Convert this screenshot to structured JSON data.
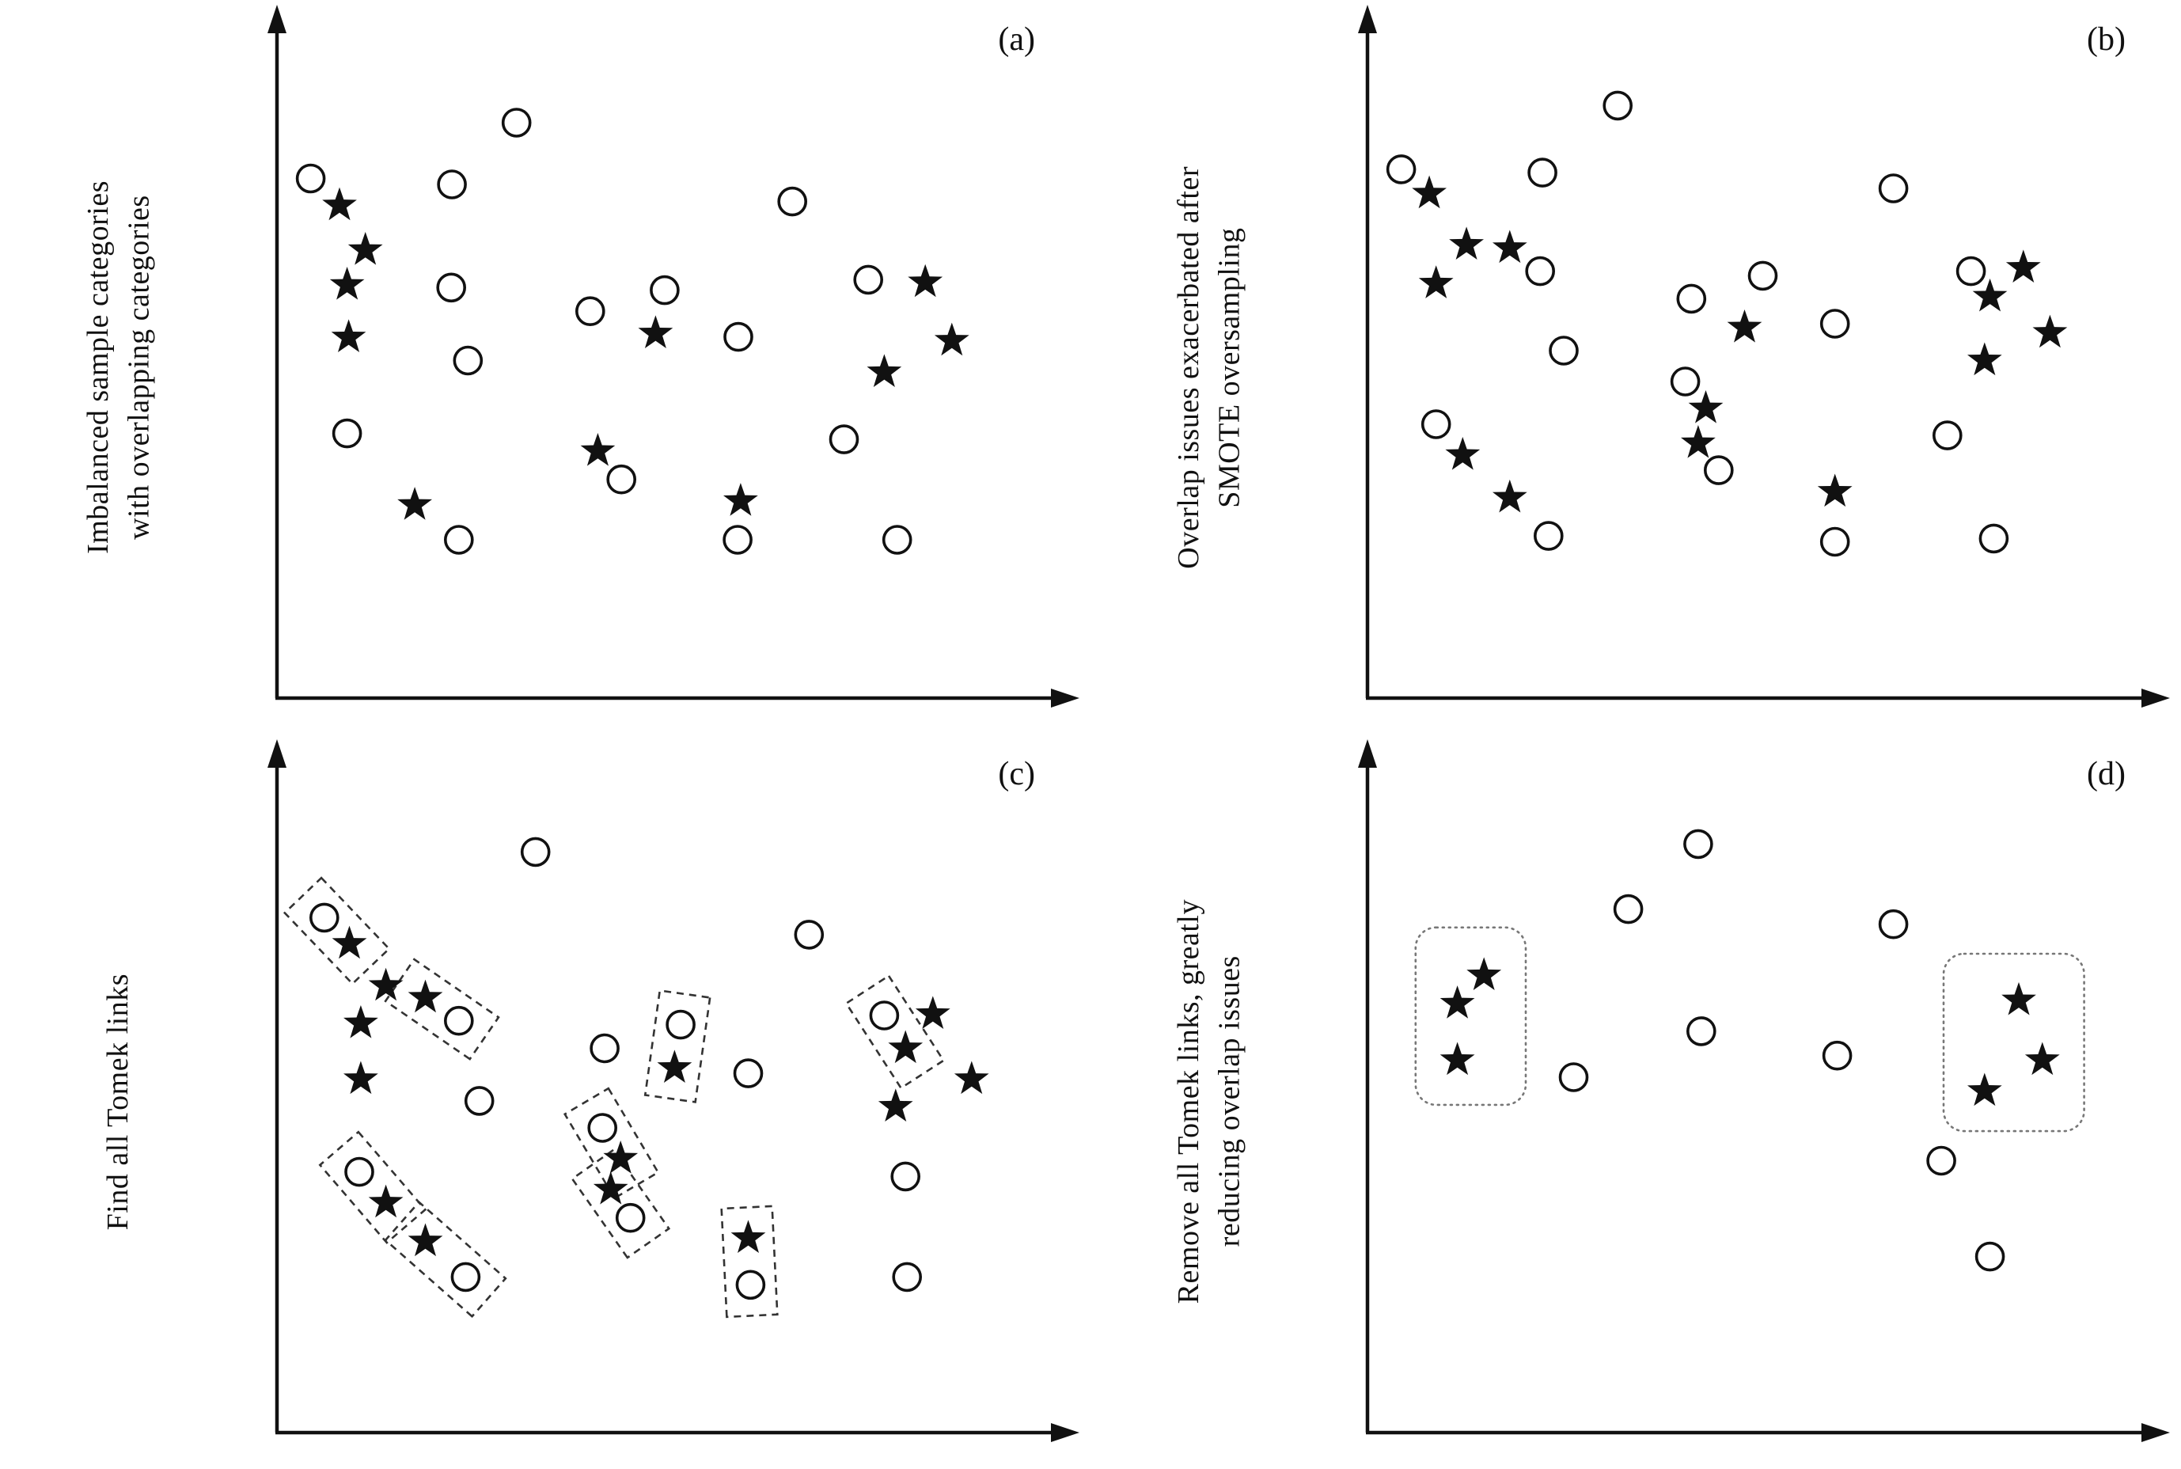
{
  "figure": {
    "background": "#ffffff",
    "axis_color": "#111111",
    "circle_fill": "#ffffff",
    "circle_stroke": "#111111",
    "star_fill": "#111111",
    "tomek_box_color": "#333333",
    "cluster_box_color": "#777777"
  },
  "chart_data": [
    {
      "type": "scatter",
      "panel": "(a)",
      "ylabel": "Imbalanced sample categories\nwith overlapping categories",
      "coords": "normalized 0-100, x rightward, y downward from top of plot area",
      "axes": {
        "ticks": "none",
        "style": "arrow axes, unlabeled"
      },
      "series": [
        {
          "name": "majority-circles",
          "marker": "circle",
          "points": [
            [
              3.6,
              23.8
            ],
            [
              22.2,
              24.7
            ],
            [
              30.7,
              15.3
            ],
            [
              22.1,
              40.4
            ],
            [
              24.3,
              51.5
            ],
            [
              8.4,
              62.6
            ],
            [
              23.1,
              78.8
            ],
            [
              40.4,
              44.0
            ],
            [
              50.2,
              40.8
            ],
            [
              44.5,
              69.6
            ],
            [
              59.9,
              47.9
            ],
            [
              59.8,
              78.8
            ],
            [
              67.0,
              27.3
            ],
            [
              77.0,
              39.2
            ],
            [
              73.8,
              63.5
            ],
            [
              80.8,
              78.8
            ]
          ]
        },
        {
          "name": "minority-stars",
          "marker": "star",
          "points": [
            [
              7.4,
              27.9
            ],
            [
              10.8,
              34.7
            ],
            [
              8.4,
              40.0
            ],
            [
              8.6,
              48.0
            ],
            [
              17.3,
              73.5
            ],
            [
              49.0,
              47.4
            ],
            [
              41.4,
              65.3
            ],
            [
              60.2,
              72.9
            ],
            [
              84.5,
              39.6
            ],
            [
              79.1,
              53.3
            ],
            [
              88.0,
              48.5
            ]
          ]
        }
      ]
    },
    {
      "type": "scatter",
      "panel": "(b)",
      "ylabel": "Overlap issues exacerbated after\nSMOTE oversampling",
      "coords": "normalized 0-100, x rightward, y downward from top of plot area",
      "axes": {
        "ticks": "none",
        "style": "arrow axes, unlabeled"
      },
      "series": [
        {
          "name": "majority-circles",
          "marker": "circle",
          "points": [
            [
              3.6,
              22.4
            ],
            [
              22.2,
              22.9
            ],
            [
              32.1,
              12.7
            ],
            [
              21.9,
              37.9
            ],
            [
              25.0,
              50.0
            ],
            [
              8.2,
              61.2
            ],
            [
              23.0,
              78.2
            ],
            [
              41.8,
              42.1
            ],
            [
              51.2,
              38.6
            ],
            [
              41.0,
              54.7
            ],
            [
              45.4,
              68.2
            ],
            [
              60.7,
              45.9
            ],
            [
              60.7,
              79.1
            ],
            [
              68.4,
              25.3
            ],
            [
              78.6,
              37.9
            ],
            [
              75.5,
              62.9
            ],
            [
              81.6,
              78.6
            ]
          ]
        },
        {
          "name": "minority-stars",
          "marker": "star",
          "points": [
            [
              7.3,
              26.1
            ],
            [
              12.2,
              33.9
            ],
            [
              8.2,
              39.8
            ],
            [
              17.9,
              34.4
            ],
            [
              11.7,
              65.9
            ],
            [
              17.9,
              72.4
            ],
            [
              48.8,
              46.5
            ],
            [
              43.7,
              58.8
            ],
            [
              42.7,
              64.1
            ],
            [
              60.7,
              71.5
            ],
            [
              81.1,
              41.8
            ],
            [
              85.5,
              37.4
            ],
            [
              80.4,
              51.5
            ],
            [
              89.0,
              47.3
            ]
          ]
        }
      ]
    },
    {
      "type": "scatter",
      "panel": "(c)",
      "ylabel": "Find all Tomek links",
      "coords": "normalized 0-100, x rightward, y downward from top of plot area",
      "axes": {
        "ticks": "none",
        "style": "arrow axes, unlabeled"
      },
      "series": [
        {
          "name": "majority-circles",
          "marker": "circle",
          "points": [
            [
              33.2,
              14.5
            ],
            [
              5.4,
              24.5
            ],
            [
              23.1,
              40.2
            ],
            [
              25.8,
              52.4
            ],
            [
              69.2,
              27.1
            ],
            [
              42.3,
              44.4
            ],
            [
              52.3,
              40.8
            ],
            [
              61.2,
              48.2
            ],
            [
              42.0,
              56.5
            ],
            [
              45.7,
              70.2
            ],
            [
              61.5,
              80.4
            ],
            [
              10.0,
              63.2
            ],
            [
              24.0,
              79.2
            ],
            [
              79.1,
              39.4
            ],
            [
              81.9,
              63.9
            ],
            [
              82.1,
              79.2
            ]
          ]
        },
        {
          "name": "minority-stars",
          "marker": "star",
          "points": [
            [
              8.7,
              28.5
            ],
            [
              13.5,
              34.9
            ],
            [
              18.7,
              36.7
            ],
            [
              10.2,
              40.6
            ],
            [
              10.2,
              49.1
            ],
            [
              51.5,
              47.4
            ],
            [
              44.4,
              61.2
            ],
            [
              43.1,
              65.9
            ],
            [
              61.2,
              73.3
            ],
            [
              13.5,
              67.9
            ],
            [
              18.7,
              73.8
            ],
            [
              81.9,
              44.4
            ],
            [
              85.5,
              39.2
            ],
            [
              80.6,
              53.3
            ],
            [
              90.6,
              49.1
            ]
          ]
        }
      ],
      "tomek_links": [
        {
          "circle": 1,
          "star": 0
        },
        {
          "circle": 2,
          "star": 2
        },
        {
          "circle": 6,
          "star": 5
        },
        {
          "circle": 8,
          "star": 6
        },
        {
          "circle": 9,
          "star": 7
        },
        {
          "circle": 10,
          "star": 8
        },
        {
          "circle": 11,
          "star": 9
        },
        {
          "circle": 12,
          "star": 10
        },
        {
          "circle": 13,
          "star": 11
        }
      ]
    },
    {
      "type": "scatter",
      "panel": "(d)",
      "ylabel": "Remove all Tomek links, greatly\nreducing overlap issues",
      "coords": "normalized 0-100, x rightward, y downward from top of plot area",
      "axes": {
        "ticks": "none",
        "style": "arrow axes, unlabeled"
      },
      "series": [
        {
          "name": "majority-circles",
          "marker": "circle",
          "points": [
            [
              42.7,
              13.3
            ],
            [
              33.5,
              23.2
            ],
            [
              26.3,
              48.8
            ],
            [
              43.1,
              41.8
            ],
            [
              61.0,
              45.5
            ],
            [
              68.4,
              25.5
            ],
            [
              74.7,
              61.5
            ],
            [
              81.1,
              76.1
            ]
          ]
        },
        {
          "name": "minority-stars",
          "marker": "star",
          "points": [
            [
              14.5,
              33.3
            ],
            [
              11.0,
              37.6
            ],
            [
              11.0,
              46.2
            ],
            [
              84.9,
              37.1
            ],
            [
              88.0,
              46.2
            ],
            [
              80.4,
              50.9
            ]
          ]
        }
      ],
      "cluster_boxes": [
        {
          "x": 5.5,
          "y": 26.0,
          "w": 14.5,
          "h": 27.0
        },
        {
          "x": 75.0,
          "y": 30.0,
          "w": 18.5,
          "h": 27.0
        }
      ]
    }
  ]
}
